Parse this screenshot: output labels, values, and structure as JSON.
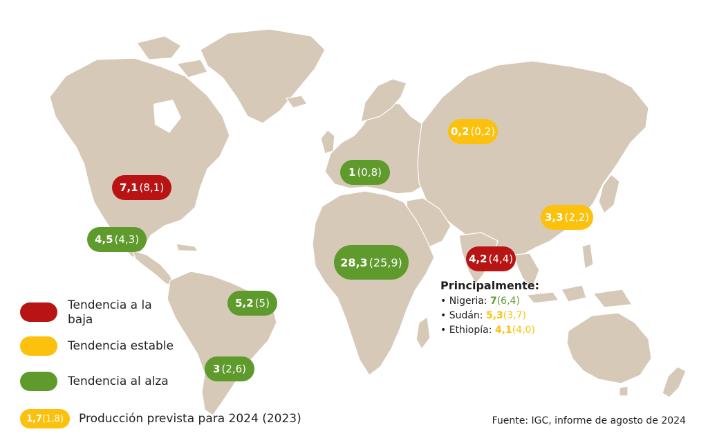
{
  "colors": {
    "down": "#b81414",
    "stable": "#fcc10c",
    "up": "#5e9a2c",
    "land": "#d7c9b8"
  },
  "regions": [
    {
      "id": "usa",
      "value": "7,1",
      "previous": "(8,1)",
      "trend": "down"
    },
    {
      "id": "mexico",
      "value": "4,5",
      "previous": "(4,3)",
      "trend": "up"
    },
    {
      "id": "brazil",
      "value": "5,2",
      "previous": "(5)",
      "trend": "up"
    },
    {
      "id": "argentina",
      "value": "3",
      "previous": "(2,6)",
      "trend": "up"
    },
    {
      "id": "europe",
      "value": "1",
      "previous": "(0,8)",
      "trend": "up"
    },
    {
      "id": "russia",
      "value": "0,2",
      "previous": "(0,2)",
      "trend": "stable"
    },
    {
      "id": "china",
      "value": "3,3",
      "previous": "(2,2)",
      "trend": "stable"
    },
    {
      "id": "india",
      "value": "4,2",
      "previous": "(4,4)",
      "trend": "down"
    },
    {
      "id": "africa",
      "value": "28,3",
      "previous": "(25,9)",
      "trend": "up"
    }
  ],
  "principal": {
    "title": "Principalmente:",
    "items": [
      {
        "label": "• Nigeria:",
        "value": "7",
        "previous": "(6,4)",
        "trend": "up"
      },
      {
        "label": "• Sudán:",
        "value": "5,3",
        "previous": "(3,7)",
        "trend": "stable"
      },
      {
        "label": "• Ethiopía:",
        "value": "4,1",
        "previous": "(4,0)",
        "trend": "stable"
      }
    ]
  },
  "legend": {
    "down": "Tendencia a la baja",
    "stable": "Tendencia estable",
    "up": "Tendencia al alza",
    "example_value": "1,7",
    "example_previous": "(1,8)",
    "example_label": "Producción prevista para 2024 (2023)"
  },
  "source": "Fuente: IGC, informe de agosto de 2024"
}
